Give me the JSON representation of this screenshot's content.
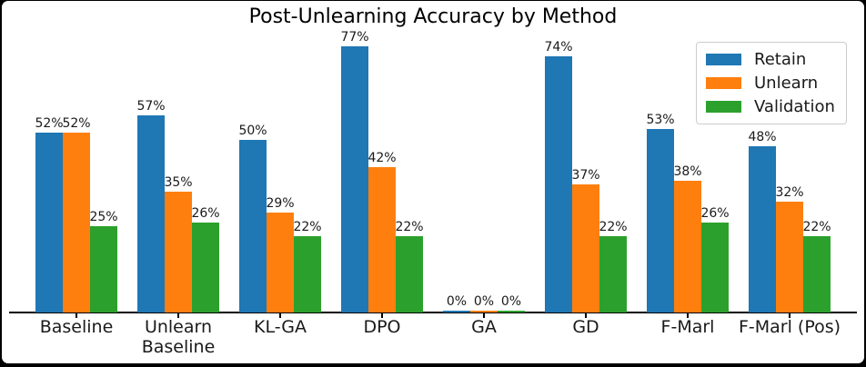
{
  "figure": {
    "background": "#ffffff",
    "frame_color": "#000000",
    "axis_color": "#000000",
    "text_color": "#1a1a1a"
  },
  "chart_data": {
    "type": "bar",
    "title": "Post-Unlearning Accuracy by Method",
    "xlabel": "",
    "ylabel": "",
    "ylim": [
      0,
      80
    ],
    "grid": false,
    "value_suffix": "%",
    "categories": [
      "Baseline",
      "Unlearn\nBaseline",
      "KL-GA",
      "DPO",
      "GA",
      "GD",
      "F-Marl",
      "F-Marl (Pos)"
    ],
    "series": [
      {
        "name": "Retain",
        "color": "#1f77b4",
        "values": [
          52,
          57,
          50,
          77,
          0,
          74,
          53,
          48
        ]
      },
      {
        "name": "Unlearn",
        "color": "#ff7f0e",
        "values": [
          52,
          35,
          29,
          42,
          0,
          37,
          38,
          32
        ]
      },
      {
        "name": "Validation",
        "color": "#2ca02c",
        "values": [
          25,
          26,
          22,
          22,
          0,
          22,
          26,
          22
        ]
      }
    ],
    "legend": {
      "position": "upper right",
      "entries": [
        "Retain",
        "Unlearn",
        "Validation"
      ]
    }
  }
}
